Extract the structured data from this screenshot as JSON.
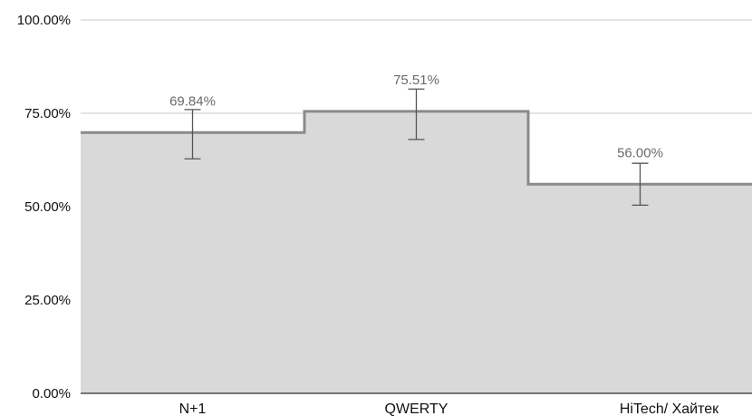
{
  "chart_data": {
    "type": "area",
    "step": true,
    "categories": [
      "N+1",
      "QWERTY",
      "HiTech/ Хайтек"
    ],
    "series": [
      {
        "values": [
          69.84,
          75.51,
          56.0
        ]
      }
    ],
    "data_labels": [
      "69.84%",
      "75.51%",
      "56.00%"
    ],
    "error_bars": [
      {
        "low": 62.8,
        "high": 76.0
      },
      {
        "low": 68.0,
        "high": 81.5
      },
      {
        "low": 50.4,
        "high": 61.6
      }
    ],
    "y_ticks": [
      {
        "value": 0,
        "label": "0.00%"
      },
      {
        "value": 25,
        "label": "25.00%"
      },
      {
        "value": 50,
        "label": "50.00%"
      },
      {
        "value": 75,
        "label": "75.00%"
      },
      {
        "value": 100,
        "label": "100.00%"
      }
    ],
    "ylim": [
      0,
      100
    ],
    "grid": true,
    "title": "",
    "xlabel": "",
    "ylabel": "",
    "colors": {
      "fill": "#d9d9d9",
      "line": "#8a8a8a",
      "grid": "#c8c8c8",
      "error": "#555555",
      "axis": "#333333"
    }
  }
}
